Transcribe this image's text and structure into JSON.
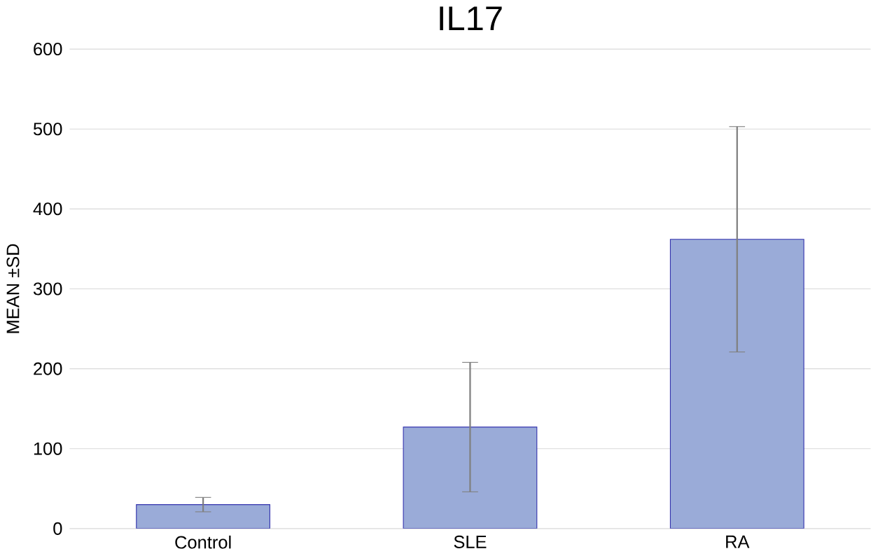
{
  "chart_data": {
    "type": "bar",
    "title": "IL17",
    "ylabel": "MEAN ±SD",
    "categories": [
      "Control",
      "SLE",
      "RA"
    ],
    "values": [
      30,
      127,
      362
    ],
    "errors": [
      9,
      81,
      141
    ],
    "color": "#9aabd8",
    "ylim": [
      0,
      600
    ],
    "yticks": [
      0,
      100,
      200,
      300,
      400,
      500,
      600
    ],
    "grid": "y"
  }
}
